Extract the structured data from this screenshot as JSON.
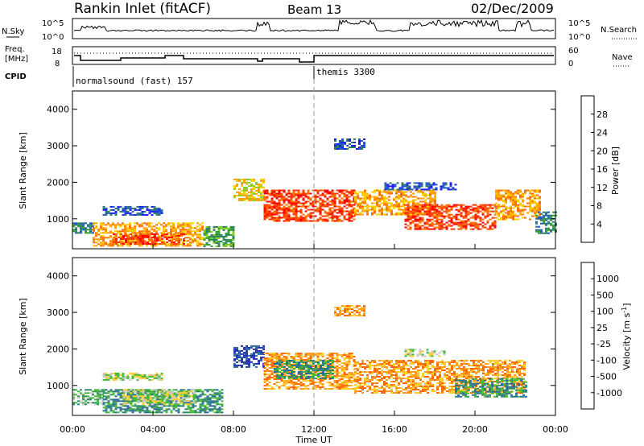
{
  "header": {
    "station": "Rankin Inlet (fitACF)",
    "beam": "Beam 13",
    "date": "02/Dec/2009"
  },
  "top_panels": {
    "nsky": {
      "label": "N.Sky",
      "left_ticks": [
        "10^5",
        "10^0"
      ],
      "right_ticks": [
        "10^5",
        "10^0"
      ],
      "right_label": "N.Search"
    },
    "freq": {
      "label_top": "Freq.",
      "label_unit": "[MHz]",
      "left_ticks": [
        "18",
        "8"
      ],
      "right_ticks": [
        "60",
        "0"
      ],
      "right_label": "Nave"
    },
    "cpid": {
      "label": "CPID",
      "modes": [
        {
          "name": "normalsound (fast) 157",
          "start_hour": 0
        },
        {
          "name": "themis 3300",
          "start_hour": 12
        }
      ]
    }
  },
  "time_axis": {
    "label": "Time UT",
    "ticks": [
      "00:00",
      "04:00",
      "08:00",
      "12:00",
      "16:00",
      "20:00",
      "00:00"
    ]
  },
  "chart_data": [
    {
      "type": "heatmap",
      "panel": "power",
      "ylabel": "Slant Range [km]",
      "ylim": [
        180,
        4500
      ],
      "yticks": [
        "1000",
        "2000",
        "3000",
        "4000"
      ],
      "xlim_hours": [
        0,
        24
      ],
      "colorbar_label": "Power [dB]",
      "colorbar_ticks": [
        "28",
        "24",
        "20",
        "16",
        "12",
        "8",
        "4"
      ],
      "colors": [
        "#1a1aff",
        "#2255cc",
        "#2a7a6a",
        "#2ca02c",
        "#88cc22",
        "#ffcc00",
        "#ffa000",
        "#ff7000",
        "#ff3a00",
        "#ff0000"
      ],
      "regions": [
        {
          "t": [
            0.0,
            1.0
          ],
          "r": [
            600,
            900
          ],
          "level": 2
        },
        {
          "t": [
            1.0,
            6.5
          ],
          "r": [
            250,
            900
          ],
          "level": 6
        },
        {
          "t": [
            2.0,
            5.5
          ],
          "r": [
            300,
            600
          ],
          "level": 8
        },
        {
          "t": [
            1.5,
            4.5
          ],
          "r": [
            1100,
            1350
          ],
          "level": 1
        },
        {
          "t": [
            6.5,
            8.0
          ],
          "r": [
            250,
            800
          ],
          "level": 3
        },
        {
          "t": [
            8.0,
            9.5
          ],
          "r": [
            1500,
            2100
          ],
          "level": 5
        },
        {
          "t": [
            9.5,
            14.0
          ],
          "r": [
            950,
            1800
          ],
          "level": 8
        },
        {
          "t": [
            14.0,
            18.0
          ],
          "r": [
            1100,
            1800
          ],
          "level": 6
        },
        {
          "t": [
            16.5,
            21.0
          ],
          "r": [
            700,
            1400
          ],
          "level": 8
        },
        {
          "t": [
            21.0,
            23.2
          ],
          "r": [
            1000,
            1800
          ],
          "level": 6
        },
        {
          "t": [
            13.0,
            14.5
          ],
          "r": [
            2900,
            3200
          ],
          "level": 1
        },
        {
          "t": [
            15.5,
            19.0
          ],
          "r": [
            1800,
            2000
          ],
          "level": 1
        },
        {
          "t": [
            23.0,
            24.0
          ],
          "r": [
            600,
            1200
          ],
          "level": 2
        }
      ]
    },
    {
      "type": "heatmap",
      "panel": "velocity",
      "ylabel": "Slant Range [km]",
      "ylim": [
        180,
        4500
      ],
      "yticks": [
        "1000",
        "2000",
        "3000",
        "4000"
      ],
      "xlim_hours": [
        0,
        24
      ],
      "colorbar_label": "Velocity [m s^-1]",
      "colorbar_ticks": [
        "1000",
        "500",
        "100",
        "25",
        "-25",
        "-100",
        "-500",
        "-1000"
      ],
      "colors": [
        "#2233aa",
        "#2a6aa0",
        "#2f8a6a",
        "#44bb33",
        "#c8c8c8",
        "#ffcc33",
        "#ff9a22",
        "#ff6a00",
        "#ff0000"
      ],
      "regions": [
        {
          "t": [
            0.0,
            1.5
          ],
          "r": [
            500,
            900
          ],
          "level": 3
        },
        {
          "t": [
            1.5,
            7.5
          ],
          "r": [
            250,
            900
          ],
          "level": 2
        },
        {
          "t": [
            2.5,
            6.0
          ],
          "r": [
            500,
            900
          ],
          "level": 4
        },
        {
          "t": [
            1.5,
            4.5
          ],
          "r": [
            1150,
            1350
          ],
          "level": 4
        },
        {
          "t": [
            8.0,
            9.5
          ],
          "r": [
            1500,
            2100
          ],
          "level": 0
        },
        {
          "t": [
            9.5,
            14.0
          ],
          "r": [
            900,
            1900
          ],
          "level": 6
        },
        {
          "t": [
            10.0,
            13.0
          ],
          "r": [
            1200,
            1700
          ],
          "level": 2
        },
        {
          "t": [
            14.0,
            22.5
          ],
          "r": [
            800,
            1700
          ],
          "level": 6
        },
        {
          "t": [
            19.0,
            22.5
          ],
          "r": [
            700,
            1200
          ],
          "level": 2
        },
        {
          "t": [
            16.5,
            18.5
          ],
          "r": [
            1800,
            2000
          ],
          "level": 4
        },
        {
          "t": [
            13.0,
            14.5
          ],
          "r": [
            2900,
            3200
          ],
          "level": 6
        }
      ]
    }
  ],
  "colors": {
    "axis": "#000000",
    "dashed_marker": "#999999"
  }
}
